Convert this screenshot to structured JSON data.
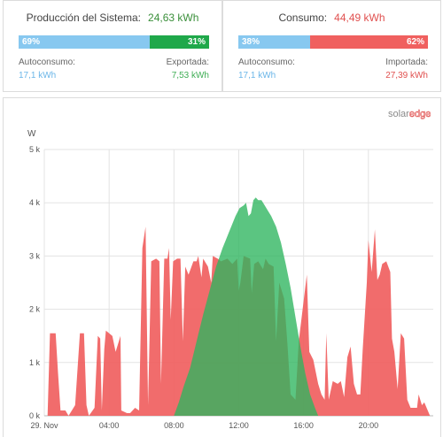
{
  "production": {
    "title": "Producción del Sistema:",
    "total": "24,63 kWh",
    "bar_left_label": "69%",
    "bar_right_label": "31%",
    "bar_left_fraction": 0.69,
    "left_label": "Autoconsumo:",
    "left_value": "17,1 kWh",
    "right_label": "Exportada:",
    "right_value": "7,53 kWh",
    "colors": {
      "left": "#87c8f0",
      "right": "#1fa84a"
    }
  },
  "consumption": {
    "title": "Consumo:",
    "total": "44,49 kWh",
    "bar_left_label": "38%",
    "bar_right_label": "62%",
    "bar_left_fraction": 0.38,
    "left_label": "Autoconsumo:",
    "left_value": "17,1 kWh",
    "right_label": "Importada:",
    "right_value": "27,39 kWh",
    "colors": {
      "left": "#87c8f0",
      "right": "#f0605f"
    }
  },
  "logo": {
    "part1": "solar",
    "part2": "edge"
  },
  "chart_data": {
    "type": "area",
    "ylabel": "W",
    "yticks": [
      "0 k",
      "1 k",
      "2 k",
      "3 k",
      "4 k",
      "5 k"
    ],
    "ylim": [
      0,
      5000
    ],
    "xlim": [
      0,
      24
    ],
    "xticks": [
      {
        "hour": 0,
        "label": "29. Nov"
      },
      {
        "hour": 4,
        "label": "04:00"
      },
      {
        "hour": 8,
        "label": "08:00"
      },
      {
        "hour": 12,
        "label": "12:00"
      },
      {
        "hour": 16,
        "label": "16:00"
      },
      {
        "hour": 20,
        "label": "20:00"
      }
    ],
    "grid": true,
    "series": [
      {
        "key": "consumption",
        "color": "#f0605f",
        "points": [
          [
            0.2,
            0
          ],
          [
            0.35,
            1550
          ],
          [
            0.7,
            1550
          ],
          [
            0.85,
            800
          ],
          [
            1.0,
            100
          ],
          [
            1.3,
            100
          ],
          [
            1.5,
            0
          ],
          [
            1.9,
            200
          ],
          [
            2.2,
            1550
          ],
          [
            2.45,
            1550
          ],
          [
            2.6,
            200
          ],
          [
            2.75,
            0
          ],
          [
            3.1,
            150
          ],
          [
            3.3,
            1500
          ],
          [
            3.45,
            1450
          ],
          [
            3.55,
            100
          ],
          [
            3.7,
            1250
          ],
          [
            3.8,
            1600
          ],
          [
            4.2,
            1500
          ],
          [
            4.4,
            1200
          ],
          [
            4.7,
            1500
          ],
          [
            4.75,
            100
          ],
          [
            5.1,
            50
          ],
          [
            5.3,
            50
          ],
          [
            5.6,
            150
          ],
          [
            5.85,
            100
          ],
          [
            6.05,
            3150
          ],
          [
            6.25,
            3550
          ],
          [
            6.4,
            200
          ],
          [
            6.6,
            2900
          ],
          [
            6.9,
            2950
          ],
          [
            7.1,
            2900
          ],
          [
            7.2,
            600
          ],
          [
            7.4,
            2950
          ],
          [
            7.6,
            2950
          ],
          [
            7.7,
            3150
          ],
          [
            7.8,
            1800
          ],
          [
            7.95,
            2900
          ],
          [
            8.2,
            2950
          ],
          [
            8.4,
            2950
          ],
          [
            8.55,
            1400
          ],
          [
            8.7,
            2800
          ],
          [
            8.9,
            2650
          ],
          [
            9.2,
            2900
          ],
          [
            9.4,
            2900
          ],
          [
            9.5,
            3000
          ],
          [
            9.7,
            2600
          ],
          [
            9.8,
            2950
          ],
          [
            10.1,
            2800
          ],
          [
            10.3,
            2500
          ],
          [
            10.4,
            3000
          ],
          [
            10.7,
            2950
          ],
          [
            10.9,
            2900
          ],
          [
            11.3,
            2950
          ],
          [
            11.6,
            2850
          ],
          [
            11.9,
            2950
          ],
          [
            12.0,
            2350
          ],
          [
            12.1,
            2500
          ],
          [
            12.3,
            3000
          ],
          [
            12.7,
            2950
          ],
          [
            12.8,
            2300
          ],
          [
            12.95,
            2850
          ],
          [
            13.2,
            2900
          ],
          [
            13.5,
            2750
          ],
          [
            13.65,
            2950
          ],
          [
            13.85,
            2850
          ],
          [
            14.15,
            2800
          ],
          [
            14.3,
            1400
          ],
          [
            14.5,
            2500
          ],
          [
            14.8,
            2200
          ],
          [
            15.0,
            1350
          ],
          [
            15.2,
            400
          ],
          [
            15.5,
            300
          ],
          [
            15.7,
            1400
          ],
          [
            16.2,
            2650
          ],
          [
            16.35,
            1200
          ],
          [
            16.6,
            1050
          ],
          [
            16.9,
            600
          ],
          [
            17.1,
            400
          ],
          [
            17.3,
            300
          ],
          [
            17.4,
            1550
          ],
          [
            17.55,
            300
          ],
          [
            17.8,
            650
          ],
          [
            18.1,
            600
          ],
          [
            18.3,
            650
          ],
          [
            18.5,
            350
          ],
          [
            18.7,
            1100
          ],
          [
            18.9,
            1300
          ],
          [
            19.1,
            600
          ],
          [
            19.3,
            400
          ],
          [
            19.5,
            400
          ],
          [
            19.65,
            1250
          ],
          [
            19.9,
            2500
          ],
          [
            20.0,
            3300
          ],
          [
            20.2,
            2700
          ],
          [
            20.4,
            3500
          ],
          [
            20.55,
            2550
          ],
          [
            20.7,
            2650
          ],
          [
            20.85,
            2850
          ],
          [
            21.1,
            2900
          ],
          [
            21.35,
            2700
          ],
          [
            21.45,
            1450
          ],
          [
            21.6,
            1200
          ],
          [
            21.8,
            500
          ],
          [
            22.0,
            1550
          ],
          [
            22.2,
            1450
          ],
          [
            22.4,
            300
          ],
          [
            22.6,
            150
          ],
          [
            22.8,
            150
          ],
          [
            23.0,
            150
          ],
          [
            23.1,
            400
          ],
          [
            23.3,
            200
          ],
          [
            23.45,
            250
          ],
          [
            23.8,
            0
          ]
        ]
      },
      {
        "key": "production",
        "color": "#2db55d",
        "points": [
          [
            8.0,
            0
          ],
          [
            8.3,
            250
          ],
          [
            8.6,
            550
          ],
          [
            9.0,
            900
          ],
          [
            9.4,
            1400
          ],
          [
            9.8,
            1900
          ],
          [
            10.2,
            2350
          ],
          [
            10.6,
            2800
          ],
          [
            11.0,
            3150
          ],
          [
            11.4,
            3450
          ],
          [
            11.8,
            3750
          ],
          [
            12.05,
            3900
          ],
          [
            12.3,
            3950
          ],
          [
            12.45,
            4000
          ],
          [
            12.6,
            3750
          ],
          [
            12.75,
            3800
          ],
          [
            12.9,
            4050
          ],
          [
            13.05,
            4100
          ],
          [
            13.2,
            4050
          ],
          [
            13.4,
            4050
          ],
          [
            13.6,
            3950
          ],
          [
            13.8,
            3850
          ],
          [
            14.0,
            3750
          ],
          [
            14.3,
            3550
          ],
          [
            14.6,
            3250
          ],
          [
            14.9,
            2850
          ],
          [
            15.2,
            2400
          ],
          [
            15.5,
            1850
          ],
          [
            15.8,
            1300
          ],
          [
            16.1,
            800
          ],
          [
            16.4,
            400
          ],
          [
            16.7,
            150
          ],
          [
            16.9,
            0
          ]
        ]
      }
    ]
  }
}
